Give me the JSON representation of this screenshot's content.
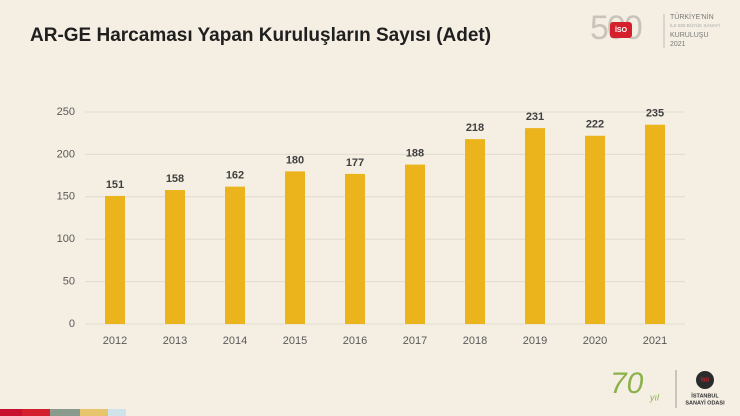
{
  "chart_data": {
    "type": "bar",
    "title": "AR-GE Harcaması Yapan Kuruluşların Sayısı (Adet)",
    "categories": [
      "2012",
      "2013",
      "2014",
      "2015",
      "2016",
      "2017",
      "2018",
      "2019",
      "2020",
      "2021"
    ],
    "values": [
      151,
      158,
      162,
      180,
      177,
      188,
      218,
      231,
      222,
      235
    ],
    "color": "#ebb41c",
    "ylim": [
      0,
      250
    ],
    "yticks": [
      0,
      50,
      100,
      150,
      200,
      250
    ],
    "grid": true
  },
  "logo_500": {
    "number": "500",
    "badge": "İSO",
    "line1": "TÜRKİYE'NİN",
    "line2": "İLK 500 BÜYÜK SANAYİ",
    "line3": "KURULUŞU",
    "year": "2021"
  },
  "logo_70": {
    "number": "70",
    "word": "yıl"
  },
  "organization": {
    "badge": "İSO",
    "line1": "İSTANBUL",
    "line2": "SANAYİ ODASI"
  }
}
